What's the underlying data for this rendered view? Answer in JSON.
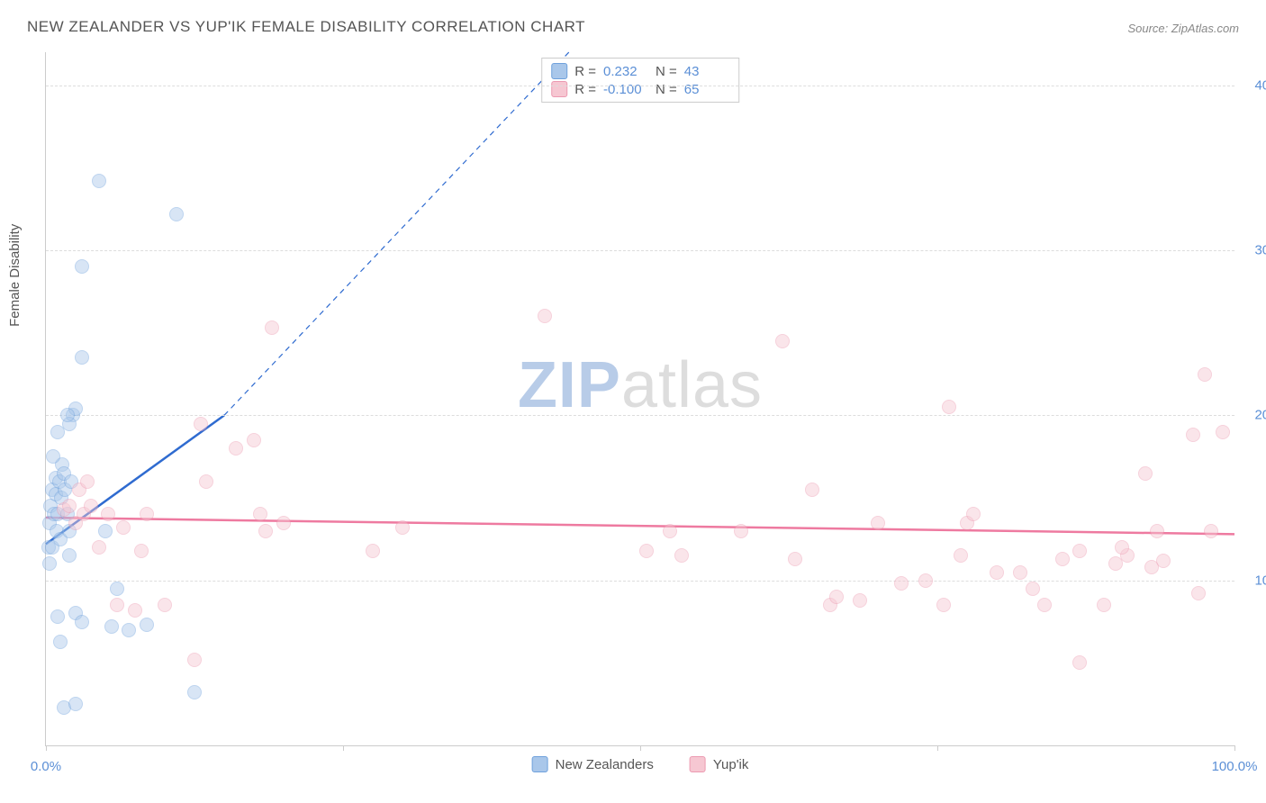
{
  "title": "NEW ZEALANDER VS YUP'IK FEMALE DISABILITY CORRELATION CHART",
  "source": "Source: ZipAtlas.com",
  "ylabel": "Female Disability",
  "watermark_zip": "ZIP",
  "watermark_rest": "atlas",
  "chart": {
    "type": "scatter",
    "xlim": [
      0,
      100
    ],
    "ylim": [
      0,
      42
    ],
    "xticks": [
      0,
      25,
      50,
      75,
      100
    ],
    "xtick_labels": {
      "0": "0.0%",
      "100": "100.0%"
    },
    "yticks": [
      10,
      20,
      30,
      40
    ],
    "ytick_labels": {
      "10": "10.0%",
      "20": "20.0%",
      "30": "30.0%",
      "40": "40.0%"
    },
    "background_color": "#ffffff",
    "grid_color": "#dddddd",
    "axis_color": "#cccccc",
    "tick_label_color": "#5b8fd6",
    "marker_size": 16,
    "marker_opacity": 0.45
  },
  "series": [
    {
      "name": "New Zealanders",
      "color_fill": "#a9c7ea",
      "color_stroke": "#6fa1dc",
      "r_label": "R =",
      "r_value": "0.232",
      "n_label": "N =",
      "n_value": "43",
      "trend": {
        "x1": 0,
        "y1": 12.2,
        "x2": 15,
        "y2": 20.0,
        "color": "#2f6bd0",
        "width": 2.5,
        "dash_extend_to": {
          "x": 44,
          "y": 42
        }
      },
      "points": [
        [
          0.2,
          12.0
        ],
        [
          0.3,
          11.0
        ],
        [
          0.3,
          13.5
        ],
        [
          0.4,
          14.5
        ],
        [
          0.5,
          12.0
        ],
        [
          0.5,
          15.5
        ],
        [
          0.7,
          14.0
        ],
        [
          0.8,
          15.2
        ],
        [
          0.8,
          16.2
        ],
        [
          0.9,
          13.0
        ],
        [
          1.0,
          14.0
        ],
        [
          1.1,
          16.0
        ],
        [
          1.2,
          12.5
        ],
        [
          1.3,
          15.0
        ],
        [
          1.4,
          17.0
        ],
        [
          1.5,
          16.5
        ],
        [
          1.6,
          15.5
        ],
        [
          1.8,
          14.0
        ],
        [
          2.0,
          13.0
        ],
        [
          2.1,
          16.0
        ],
        [
          2.3,
          20.0
        ],
        [
          2.5,
          20.4
        ],
        [
          2.0,
          11.5
        ],
        [
          3.0,
          23.5
        ],
        [
          3.0,
          29.0
        ],
        [
          4.5,
          34.2
        ],
        [
          11.0,
          32.2
        ],
        [
          5.0,
          13.0
        ],
        [
          5.5,
          7.2
        ],
        [
          7.0,
          7.0
        ],
        [
          8.5,
          7.3
        ],
        [
          6.0,
          9.5
        ],
        [
          2.5,
          8.0
        ],
        [
          3.0,
          7.5
        ],
        [
          1.0,
          7.8
        ],
        [
          1.2,
          6.3
        ],
        [
          1.5,
          2.3
        ],
        [
          2.5,
          2.5
        ],
        [
          12.5,
          3.2
        ],
        [
          2.0,
          19.5
        ],
        [
          1.8,
          20.0
        ],
        [
          1.0,
          19.0
        ],
        [
          0.6,
          17.5
        ]
      ]
    },
    {
      "name": "Yup'ik",
      "color_fill": "#f6c7d2",
      "color_stroke": "#ec9ab1",
      "r_label": "R =",
      "r_value": "-0.100",
      "n_label": "N =",
      "n_value": "65",
      "trend": {
        "x1": 0,
        "y1": 13.8,
        "x2": 100,
        "y2": 12.8,
        "color": "#ee7aa0",
        "width": 2.5
      },
      "points": [
        [
          1.5,
          14.3
        ],
        [
          2.0,
          14.5
        ],
        [
          2.5,
          13.5
        ],
        [
          2.8,
          15.5
        ],
        [
          3.2,
          14.0
        ],
        [
          3.5,
          16.0
        ],
        [
          3.8,
          14.5
        ],
        [
          4.5,
          12.0
        ],
        [
          5.2,
          14.0
        ],
        [
          6.0,
          8.5
        ],
        [
          6.5,
          13.2
        ],
        [
          7.5,
          8.2
        ],
        [
          8.0,
          11.8
        ],
        [
          8.5,
          14.0
        ],
        [
          10.0,
          8.5
        ],
        [
          13.0,
          19.5
        ],
        [
          13.5,
          16.0
        ],
        [
          12.5,
          5.2
        ],
        [
          16.0,
          18.0
        ],
        [
          17.5,
          18.5
        ],
        [
          18.0,
          14.0
        ],
        [
          18.5,
          13.0
        ],
        [
          19.0,
          25.3
        ],
        [
          20.0,
          13.5
        ],
        [
          27.5,
          11.8
        ],
        [
          30.0,
          13.2
        ],
        [
          42.0,
          26.0
        ],
        [
          50.5,
          11.8
        ],
        [
          52.5,
          13.0
        ],
        [
          53.5,
          11.5
        ],
        [
          58.5,
          13.0
        ],
        [
          62.0,
          24.5
        ],
        [
          63.0,
          11.3
        ],
        [
          64.5,
          15.5
        ],
        [
          66.0,
          8.5
        ],
        [
          66.5,
          9.0
        ],
        [
          68.5,
          8.8
        ],
        [
          72.0,
          9.8
        ],
        [
          74.0,
          10.0
        ],
        [
          75.5,
          8.5
        ],
        [
          76.0,
          20.5
        ],
        [
          77.0,
          11.5
        ],
        [
          77.5,
          13.5
        ],
        [
          78.0,
          14.0
        ],
        [
          80.0,
          10.5
        ],
        [
          82.0,
          10.5
        ],
        [
          83.0,
          9.5
        ],
        [
          84.0,
          8.5
        ],
        [
          85.5,
          11.3
        ],
        [
          87.0,
          11.8
        ],
        [
          87.0,
          5.0
        ],
        [
          89.0,
          8.5
        ],
        [
          90.0,
          11.0
        ],
        [
          91.0,
          11.5
        ],
        [
          92.5,
          16.5
        ],
        [
          93.0,
          10.8
        ],
        [
          93.5,
          13.0
        ],
        [
          94.0,
          11.2
        ],
        [
          96.5,
          18.8
        ],
        [
          97.0,
          9.2
        ],
        [
          97.5,
          22.5
        ],
        [
          98.0,
          13.0
        ],
        [
          99.0,
          19.0
        ],
        [
          90.5,
          12.0
        ],
        [
          70.0,
          13.5
        ]
      ]
    }
  ],
  "bottom_legend": [
    {
      "label": "New Zealanders",
      "fill": "#a9c7ea",
      "stroke": "#6fa1dc"
    },
    {
      "label": "Yup'ik",
      "fill": "#f6c7d2",
      "stroke": "#ec9ab1"
    }
  ]
}
